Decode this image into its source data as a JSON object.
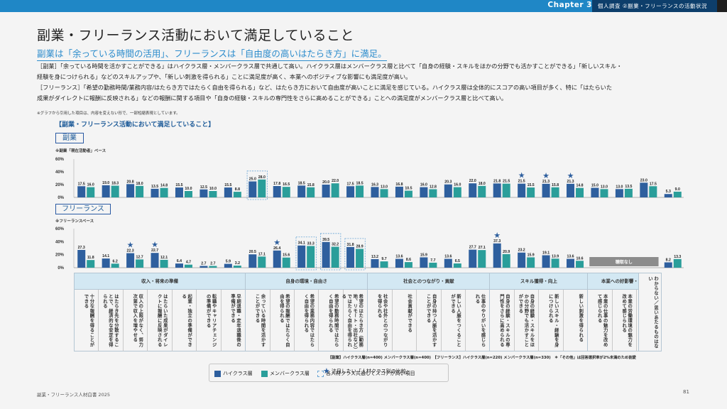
{
  "header": {
    "chapter": "Chapter 3",
    "section": "個人調査 ②副業・フリーランスの活動状況"
  },
  "page_title": "副業・フリーランス活動において満足していること",
  "subtitle": "副業は「余っている時間の活用」、フリーランスは「自由度の高いはたらき方」に満足。",
  "body_lines": [
    "［副業］「余っている時間を活かすことができる」はハイクラス層・メンバークラス層で共通して高い。ハイクラス層はメンバークラス層と比べて「自身の経験・スキルをほかの分野でも活かすことができる」「新しいスキル・",
    "経験を身につけられる」などのスキルアップや、「新しい刺激を得られる」ことに満足度が高く、本業へのポジティブな影響にも満足度が高い。",
    "［フリーランス］「希望の勤務時間/業務内容/はたらき方ではたらく自由を得られる」など、はたらき方において自由度が高いことに満足を感じている。ハイクラス層は全体的にスコアの高い項目が多く、特に「はたらいた",
    "成果がダイレクトに報酬に反映される」などの報酬に関する項目や「自身の経験・スキルの専門性をさらに高めることができる」ことへの満足度がメンバークラス層と比べて高い。"
  ],
  "note": "※グラフから引用した項目は、内容を変えない形で、一部短縮表現としています。",
  "chart_title": "【副業・フリーランス活動において満足していること】",
  "colors": {
    "high_class": "#2e5f9e",
    "member_class": "#2a9e9a",
    "star": "#2e5f9e",
    "highlight_border": "#6aa6d6",
    "no_data": "#8c8c8c"
  },
  "chart_data": [
    {
      "type": "bar",
      "panel": "副業",
      "base_note": "※副業「現在活動者」ベース",
      "ylim": [
        0,
        60
      ],
      "yticks": [
        "60%",
        "40%",
        "20%",
        "0%"
      ],
      "ytick_values": [
        60,
        40,
        20,
        0
      ],
      "series": [
        {
          "name": "ハイクラス層",
          "values": [
            17.5,
            19.0,
            20.8,
            13.5,
            15.5,
            12.5,
            15.5,
            25.0,
            17.8,
            18.5,
            20.0,
            17.5,
            16.3,
            16.8,
            16.0,
            20.3,
            22.0,
            21.8,
            21.5,
            21.3,
            21.3,
            15.0,
            13.0,
            23.0,
            5.3
          ]
        },
        {
          "name": "メンバークラス層",
          "values": [
            16.0,
            18.3,
            18.0,
            14.8,
            10.0,
            10.0,
            8.8,
            28.0,
            16.5,
            15.8,
            22.0,
            18.5,
            13.0,
            10.5,
            12.8,
            16.0,
            18.0,
            21.5,
            15.5,
            15.8,
            14.8,
            13.0,
            13.5,
            17.5,
            9.0
          ]
        }
      ],
      "starred": [
        18,
        19,
        20
      ],
      "highlighted": [
        7
      ],
      "no_data": []
    },
    {
      "type": "bar",
      "panel": "フリーランス",
      "base_note": "※フリーランスベース",
      "ylim": [
        0,
        60
      ],
      "yticks": [
        "60%",
        "40%",
        "20%",
        "0%"
      ],
      "ytick_values": [
        60,
        40,
        20,
        0
      ],
      "series": [
        {
          "name": "ハイクラス層",
          "values": [
            27.3,
            14.1,
            22.3,
            22.7,
            6.4,
            2.7,
            5.9,
            20.5,
            26.4,
            34.1,
            39.5,
            31.8,
            13.2,
            13.6,
            15.9,
            13.6,
            27.7,
            37.3,
            23.2,
            19.1,
            13.6,
            null,
            null,
            null,
            8.2
          ]
        },
        {
          "name": "メンバークラス層",
          "values": [
            11.8,
            6.2,
            12.7,
            12.1,
            4.7,
            2.7,
            3.2,
            17.1,
            15.6,
            33.3,
            32.2,
            28.9,
            9.7,
            8.6,
            7.7,
            6.5,
            27.1,
            20.9,
            15.9,
            13.9,
            10.6,
            null,
            null,
            null,
            13.3
          ]
        }
      ],
      "starred": [
        2,
        3,
        8,
        17
      ],
      "highlighted": [
        9,
        10,
        11
      ],
      "no_data": [
        21,
        22,
        23
      ],
      "no_data_label": "聴取なし"
    }
  ],
  "categories": [
    {
      "group": "収入・将来の準備",
      "items": [
        "十分な報酬を得ることができる",
        "はたらき先を分散することで、経済的な安定を得られる",
        "収入の上限がなく、努力次第で収入を増やせる",
        "はたらいた成果がダイレクトに報酬に反映される",
        "起業・独立の準備ができる",
        "転職やキャリアチェンジの準備ができる",
        "早期退職・定年退職後の準備ができる"
      ]
    },
    {
      "group": "自身の環境・自由さ",
      "items": [
        "余っている時間を活かすことができる",
        "希望の報酬ではたらく自由を得られる",
        "希望の業務内容ではたらく自由を得られる",
        "希望の勤務時間ではたらく自由を得られる",
        "希望のはたらき方（勤務地、リモート・出社など）ではたらく自由を得られる"
      ]
    },
    {
      "group": "社会とのつながり・貢献",
      "items": [
        "社会や社外とのつながりを得られる",
        "社会貢献ができる",
        "自身の持つ人脈を活かすことができる",
        "新しい人脈をつくることができる",
        "仕事のやりがいを感じられる"
      ]
    },
    {
      "group": "スキル獲得・向上",
      "items": [
        "自身の経験・スキルの専門性をさらに高められる",
        "自身の経験・スキルをほかの分野でも活かすことができる",
        "新しいスキル・経験を身につけられる",
        "新しい刺激を得られる"
      ]
    },
    {
      "group": "本業への好影響・還元",
      "items": [
        "本業の仕事の魅力を改めて感じられる",
        "本業の労働環境の魅力を改めて感じられる",
        "副業で得た経験・スキルを本業に活かすことができる"
      ]
    }
  ],
  "other_category": "わからない／思いあたるものはない",
  "sample_note": "【副業】ハイクラス層(n=400) メンバークラス層(n=400)　【フリーランス】ハイクラス層(n=220) メンバークラス層(n=330)　＊「その他」は回答選択率が2%未満のため割愛",
  "legend": {
    "high": "ハイクラス層",
    "member": "メンバークラス層",
    "common": "各人材クラス共通してスコアが高い項目",
    "star": "注目したい「人材クラス別の比較」"
  },
  "footer": {
    "publication": "副業・フリーランス人材白書 2025",
    "page_number": "81"
  }
}
